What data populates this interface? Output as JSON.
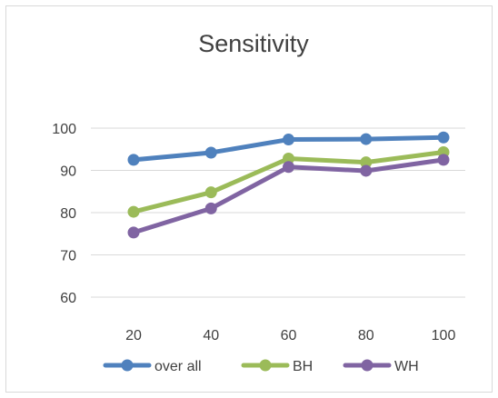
{
  "chart_data": {
    "type": "line",
    "title": "Sensitivity",
    "xlabel": "",
    "ylabel": "",
    "categories": [
      "20",
      "40",
      "60",
      "80",
      "100"
    ],
    "y_ticks": [
      "60",
      "70",
      "80",
      "90",
      "100"
    ],
    "ylim": [
      60,
      100
    ],
    "grid": true,
    "legend_position": "bottom",
    "series": [
      {
        "name": "over all",
        "color": "#4f81bd",
        "values": [
          92.5,
          94.2,
          97.3,
          97.4,
          97.8
        ]
      },
      {
        "name": "BH",
        "color": "#9bbb59",
        "values": [
          80.2,
          84.8,
          92.8,
          91.9,
          94.3
        ]
      },
      {
        "name": "WH",
        "color": "#8064a2",
        "values": [
          75.3,
          81.0,
          90.8,
          89.9,
          92.5
        ]
      }
    ]
  }
}
